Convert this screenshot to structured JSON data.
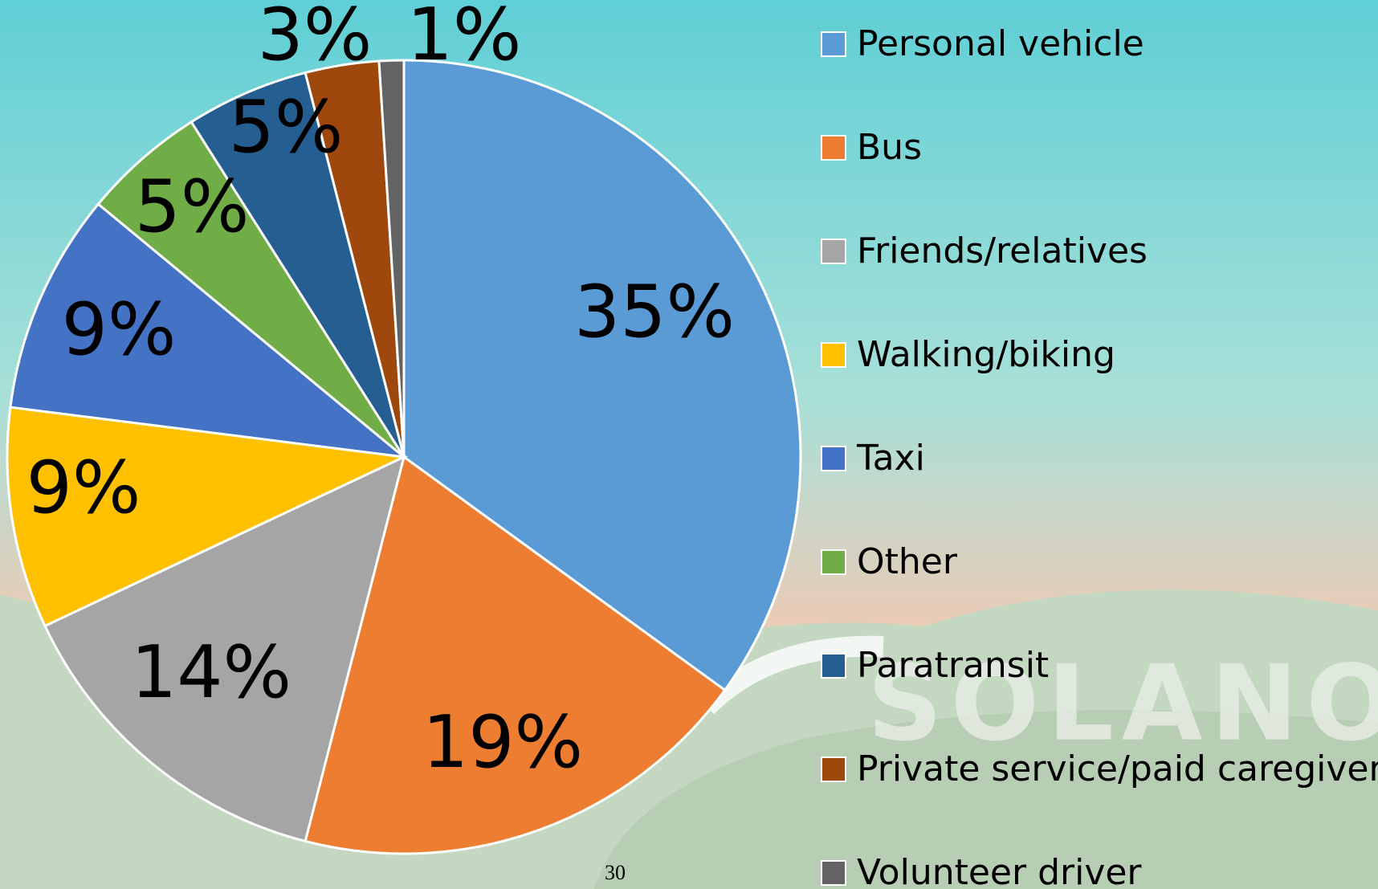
{
  "chart_data": {
    "type": "pie",
    "categories": [
      "Personal vehicle",
      "Bus",
      "Friends/relatives",
      "Walking/biking",
      "Taxi",
      "Other",
      "Paratransit",
      "Private service/paid caregiver",
      "Volunteer driver"
    ],
    "values": [
      35,
      19,
      14,
      9,
      9,
      5,
      5,
      3,
      1
    ],
    "value_labels": [
      "35%",
      "19%",
      "14%",
      "9%",
      "9%",
      "5%",
      "5%",
      "3%",
      "1%"
    ],
    "colors": [
      "#5b9bd5",
      "#ed7d31",
      "#a5a5a5",
      "#ffc000",
      "#4472c4",
      "#70ad47",
      "#255e91",
      "#9e480e",
      "#636363"
    ],
    "legend": "right"
  },
  "background_text": "SOLANO",
  "page_number": "30"
}
